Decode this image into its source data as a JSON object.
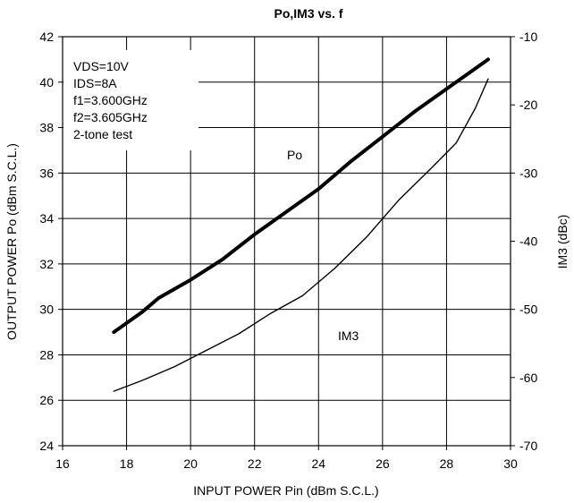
{
  "chart_data": {
    "type": "line",
    "title": "Po,IM3 vs. f",
    "xlabel": "INPUT POWER Pin (dBm S.C.L.)",
    "ylabel": "OUTPUT POWER Po (dBm S.C.L.)",
    "y2label": "IM3 (dBc)",
    "xlim": [
      16,
      30
    ],
    "ylim": [
      24,
      42
    ],
    "y2lim": [
      -70,
      -10
    ],
    "xticks": [
      "16",
      "18",
      "20",
      "22",
      "24",
      "26",
      "28",
      "30"
    ],
    "yticks": [
      "24",
      "26",
      "28",
      "30",
      "32",
      "34",
      "36",
      "38",
      "40",
      "42"
    ],
    "y2ticks": [
      "-70",
      "-60",
      "-50",
      "-40",
      "-30",
      "-20",
      "-10"
    ],
    "grid": true,
    "conditions": [
      "VDS=10V",
      "IDS=8A",
      "f1=3.600GHz",
      "f2=3.605GHz",
      "2-tone test"
    ],
    "series": [
      {
        "name": "Po",
        "axis": "left",
        "x": [
          17.6,
          18.5,
          19.0,
          20.0,
          21.0,
          22.0,
          23.0,
          24.0,
          25.0,
          26.0,
          27.0,
          28.0,
          29.3
        ],
        "y": [
          29.0,
          29.9,
          30.5,
          31.3,
          32.2,
          33.3,
          34.3,
          35.3,
          36.5,
          37.6,
          38.7,
          39.7,
          41.0
        ]
      },
      {
        "name": "IM3",
        "axis": "right",
        "x": [
          17.6,
          18.5,
          19.5,
          20.5,
          21.5,
          22.5,
          23.5,
          24.5,
          25.5,
          26.5,
          27.5,
          28.3,
          28.9,
          29.3
        ],
        "y": [
          -62.0,
          -60.4,
          -58.4,
          -56.0,
          -53.6,
          -50.6,
          -48.0,
          -44.0,
          -39.4,
          -34.0,
          -29.4,
          -25.6,
          -20.5,
          -16.2
        ]
      }
    ]
  }
}
